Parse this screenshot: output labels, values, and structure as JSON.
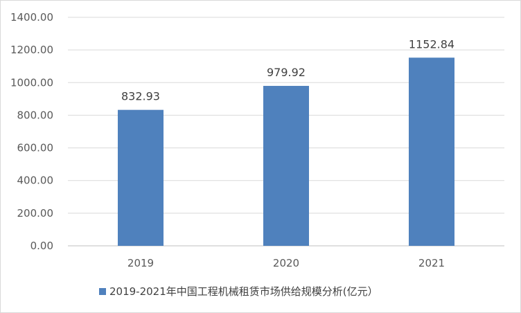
{
  "chart_data": {
    "type": "bar",
    "categories": [
      "2019",
      "2020",
      "2021"
    ],
    "series": [
      {
        "name": "2019-2021年中国工程机械租赁市场供给规模分析(亿元）",
        "values": [
          832.93,
          979.92,
          1152.84
        ],
        "color": "#4f81bd"
      }
    ],
    "data_labels": [
      "832.93",
      "979.92",
      "1152.84"
    ],
    "y_ticks": [
      "0.00",
      "200.00",
      "400.00",
      "600.00",
      "800.00",
      "1000.00",
      "1200.00",
      "1400.00"
    ],
    "ylim": [
      0,
      1400
    ],
    "grid": true,
    "legend_position": "bottom"
  }
}
